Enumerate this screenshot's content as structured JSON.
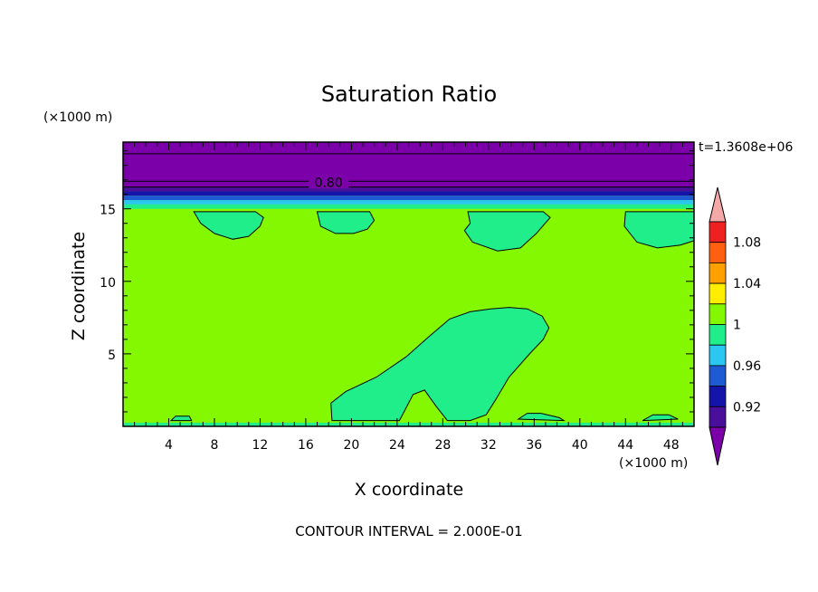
{
  "chart_data": {
    "type": "heatmap",
    "title": "Saturation Ratio",
    "xlabel": "X coordinate",
    "ylabel": "Z coordinate",
    "x_unit": "(×1000 m)",
    "z_unit": "(×1000 m)",
    "xlim": [
      0,
      50
    ],
    "ylim": [
      0,
      19.6
    ],
    "x_ticks": [
      4,
      8,
      12,
      16,
      20,
      24,
      28,
      32,
      36,
      40,
      44,
      48
    ],
    "y_ticks": [
      5,
      10,
      15
    ],
    "time_label": "t=1.3608e+06",
    "contour_label": "0.80",
    "contour_label_x": 18,
    "contour_interval_text": "CONTOUR INTERVAL = 2.000E-01",
    "colorbar": {
      "labels": [
        "0.92",
        "0.96",
        "1",
        "1.04",
        "1.08"
      ],
      "bands": [
        {
          "low": null,
          "high": 0.9,
          "color": "#7b00aa"
        },
        {
          "low": 0.9,
          "high": 0.92,
          "color": "#4a0f9a"
        },
        {
          "low": 0.92,
          "high": 0.94,
          "color": "#1414aa"
        },
        {
          "low": 0.94,
          "high": 0.96,
          "color": "#1e5ad2"
        },
        {
          "low": 0.96,
          "high": 0.98,
          "color": "#2ac8f0"
        },
        {
          "low": 0.98,
          "high": 1.0,
          "color": "#20ee8a"
        },
        {
          "low": 1.0,
          "high": 1.02,
          "color": "#84f800"
        },
        {
          "low": 1.02,
          "high": 1.04,
          "color": "#ffee00"
        },
        {
          "low": 1.04,
          "high": 1.06,
          "color": "#ffa000"
        },
        {
          "low": 1.06,
          "high": 1.08,
          "color": "#ff6010"
        },
        {
          "low": 1.08,
          "high": 1.1,
          "color": "#ee2020"
        },
        {
          "low": 1.1,
          "high": null,
          "color": "#f4a8a8"
        }
      ]
    },
    "regions": [
      {
        "name": "upper-layer",
        "value_range": "<0.9",
        "z_range": [
          16.5,
          19.6
        ],
        "color": "#7b00aa"
      },
      {
        "name": "transition-band",
        "value_range": "0.92-0.98",
        "z_range": [
          15.0,
          16.5
        ],
        "color": "#1414aa"
      },
      {
        "name": "background",
        "value_range": "1.00-1.02",
        "z_range": [
          0,
          15.0
        ],
        "color": "#84f800"
      },
      {
        "name": "upper-patches",
        "value_range": "0.98-1.00",
        "z_range": [
          12,
          15
        ],
        "color": "#20ee8a"
      },
      {
        "name": "central-plume",
        "value_range": "0.98-1.00",
        "z_range": [
          0.4,
          8.2
        ],
        "color": "#20ee8a"
      }
    ],
    "contour_lines_z": [
      16.5,
      16.9,
      18.8
    ]
  }
}
